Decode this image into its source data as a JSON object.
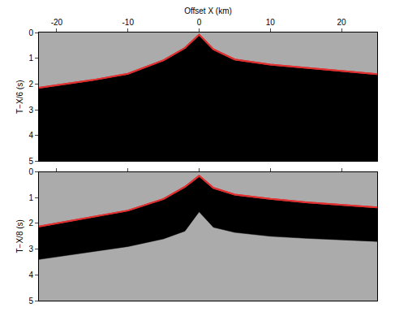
{
  "chart_data": [
    {
      "type": "line",
      "xlabel": "Offset X (km)",
      "ylabel": "T−X/6 (s)",
      "x": [
        -22.5,
        -15,
        -10,
        -5,
        -2,
        0,
        2,
        5,
        10,
        15,
        20,
        25
      ],
      "series": [
        {
          "type": "line",
          "color": "#e03030",
          "values": [
            2.15,
            1.85,
            1.6,
            1.08,
            0.6,
            0.08,
            0.65,
            1.05,
            1.25,
            1.38,
            1.5,
            1.62
          ]
        },
        {
          "type": "area",
          "color": "#000000",
          "values": [
            5,
            5,
            5,
            5,
            5,
            5,
            5,
            5,
            5,
            5,
            5,
            5
          ]
        }
      ],
      "xlim": [
        -22.5,
        25
      ],
      "xticks": [
        -20,
        -10,
        0,
        10,
        20
      ],
      "ylim": [
        5,
        0
      ],
      "yticks": [
        0,
        1,
        2,
        3,
        4,
        5
      ]
    },
    {
      "type": "line",
      "ylabel": "T−X/8 (s)",
      "x": [
        -22.5,
        -15,
        -10,
        -5,
        -2,
        0,
        2,
        5,
        10,
        15,
        20,
        25
      ],
      "series": [
        {
          "type": "line",
          "color": "#e03030",
          "values": [
            2.12,
            1.75,
            1.5,
            1.05,
            0.58,
            0.15,
            0.62,
            0.88,
            1.05,
            1.18,
            1.28,
            1.38
          ]
        },
        {
          "type": "area",
          "color": "#000000",
          "values": [
            3.4,
            3.1,
            2.9,
            2.6,
            2.3,
            1.55,
            2.15,
            2.35,
            2.5,
            2.58,
            2.65,
            2.7
          ]
        }
      ],
      "xlim": [
        -22.5,
        25
      ],
      "xticks": [
        -20,
        -10,
        0,
        10,
        20
      ],
      "ylim": [
        5,
        0
      ],
      "yticks": [
        0,
        1,
        2,
        3,
        4,
        5
      ],
      "tick_labels": "y"
    }
  ]
}
